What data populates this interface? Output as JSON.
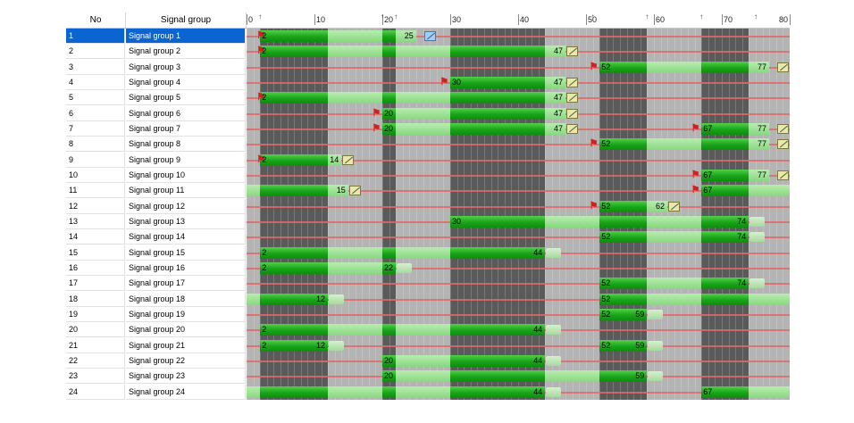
{
  "header": {
    "no_label": "No",
    "signal_group_label": "Signal group"
  },
  "time_axis": {
    "ticks": [
      0,
      10,
      20,
      30,
      40,
      50,
      60,
      70,
      80
    ],
    "markers": [
      2,
      20,
      22,
      51,
      59,
      67,
      75
    ]
  },
  "colors": {
    "green_bar": "#18a418",
    "light_green": "#88d880",
    "background_gray": "#b4b4b4",
    "dark_gray": "#5a5a5a",
    "red_line": "#e06a6a",
    "selection": "#0a64d2"
  },
  "rows": [
    {
      "no": "1",
      "name": "Signal group 1",
      "selected": true,
      "green": [
        [
          2,
          25
        ]
      ],
      "labels": [
        [
          2,
          "2"
        ],
        [
          23,
          "25"
        ]
      ],
      "flags": [
        2
      ],
      "ends": [
        [
          26,
          "blue"
        ]
      ]
    },
    {
      "no": "2",
      "name": "Signal group 2",
      "green": [
        [
          2,
          47
        ]
      ],
      "labels": [
        [
          2,
          "2"
        ],
        [
          45,
          "47"
        ]
      ],
      "flags": [
        2
      ],
      "ends": [
        [
          47,
          "y"
        ]
      ]
    },
    {
      "no": "3",
      "name": "Signal group 3",
      "green": [
        [
          52,
          77
        ]
      ],
      "labels": [
        [
          52,
          "52"
        ],
        [
          75,
          "77"
        ]
      ],
      "flags": [
        51
      ],
      "ends": [
        [
          78,
          "y"
        ]
      ]
    },
    {
      "no": "4",
      "name": "Signal group 4",
      "green": [
        [
          30,
          47
        ]
      ],
      "labels": [
        [
          30,
          "30"
        ],
        [
          45,
          "47"
        ]
      ],
      "flags": [
        29
      ],
      "ends": [
        [
          47,
          "y"
        ]
      ]
    },
    {
      "no": "5",
      "name": "Signal group 5",
      "green": [
        [
          2,
          47
        ]
      ],
      "labels": [
        [
          2,
          "2"
        ],
        [
          45,
          "47"
        ]
      ],
      "flags": [
        2
      ],
      "ends": [
        [
          47,
          "y"
        ]
      ]
    },
    {
      "no": "6",
      "name": "Signal group 6",
      "green": [
        [
          20,
          47
        ]
      ],
      "labels": [
        [
          20,
          "20"
        ],
        [
          45,
          "47"
        ]
      ],
      "flags": [
        19
      ],
      "ends": [
        [
          47,
          "y"
        ]
      ]
    },
    {
      "no": "7",
      "name": "Signal group 7",
      "green": [
        [
          20,
          47
        ],
        [
          67,
          77
        ]
      ],
      "labels": [
        [
          20,
          "20"
        ],
        [
          45,
          "47"
        ],
        [
          67,
          "67"
        ],
        [
          75,
          "77"
        ]
      ],
      "flags": [
        19,
        66
      ],
      "ends": [
        [
          47,
          "y"
        ],
        [
          78,
          "y"
        ]
      ]
    },
    {
      "no": "8",
      "name": "Signal group 8",
      "green": [
        [
          52,
          77
        ]
      ],
      "labels": [
        [
          52,
          "52"
        ],
        [
          75,
          "77"
        ]
      ],
      "flags": [
        51
      ],
      "ends": [
        [
          78,
          "y"
        ]
      ]
    },
    {
      "no": "9",
      "name": "Signal group 9",
      "green": [
        [
          2,
          14
        ]
      ],
      "labels": [
        [
          2,
          "2"
        ],
        [
          12,
          "14"
        ]
      ],
      "flags": [
        2
      ],
      "ends": [
        [
          14,
          "y"
        ]
      ]
    },
    {
      "no": "10",
      "name": "Signal group 10",
      "green": [
        [
          67,
          77
        ]
      ],
      "labels": [
        [
          67,
          "67"
        ],
        [
          75,
          "77"
        ]
      ],
      "flags": [
        66
      ],
      "ends": [
        [
          78,
          "y"
        ]
      ]
    },
    {
      "no": "11",
      "name": "Signal group 11",
      "green": [
        [
          -1,
          15
        ],
        [
          67,
          80
        ]
      ],
      "labels": [
        [
          13,
          "15"
        ],
        [
          67,
          "67"
        ]
      ],
      "flags": [
        66
      ],
      "ends": [
        [
          15,
          "y"
        ]
      ]
    },
    {
      "no": "12",
      "name": "Signal group 12",
      "green": [
        [
          52,
          62
        ]
      ],
      "labels": [
        [
          52,
          "52"
        ],
        [
          60,
          "62"
        ]
      ],
      "flags": [
        51
      ],
      "ends": [
        [
          62,
          "y"
        ]
      ]
    },
    {
      "no": "13",
      "name": "Signal group 13",
      "green": [
        [
          30,
          74
        ]
      ],
      "labels": [
        [
          30,
          "30"
        ],
        [
          72,
          "74"
        ]
      ],
      "flags": [],
      "ends": [],
      "amber": [
        74
      ]
    },
    {
      "no": "14",
      "name": "Signal group 14",
      "green": [
        [
          52,
          74
        ]
      ],
      "labels": [
        [
          52,
          "52"
        ],
        [
          72,
          "74"
        ]
      ],
      "flags": [],
      "ends": [],
      "amber": [
        74
      ]
    },
    {
      "no": "15",
      "name": "Signal group 15",
      "green": [
        [
          2,
          44
        ]
      ],
      "labels": [
        [
          2,
          "2"
        ],
        [
          42,
          "44"
        ]
      ],
      "flags": [],
      "ends": [],
      "amber": [
        44
      ]
    },
    {
      "no": "16",
      "name": "Signal group 16",
      "green": [
        [
          2,
          22
        ]
      ],
      "labels": [
        [
          2,
          "2"
        ],
        [
          20,
          "22"
        ]
      ],
      "flags": [],
      "ends": [],
      "amber": [
        22
      ]
    },
    {
      "no": "17",
      "name": "Signal group 17",
      "green": [
        [
          52,
          74
        ]
      ],
      "labels": [
        [
          52,
          "52"
        ],
        [
          72,
          "74"
        ]
      ],
      "flags": [],
      "ends": [],
      "amber": [
        74
      ]
    },
    {
      "no": "18",
      "name": "Signal group 18",
      "green": [
        [
          -1,
          12
        ],
        [
          52,
          80
        ]
      ],
      "labels": [
        [
          10,
          "12"
        ],
        [
          52,
          "52"
        ]
      ],
      "flags": [],
      "ends": [],
      "amber": [
        12
      ]
    },
    {
      "no": "19",
      "name": "Signal group 19",
      "green": [
        [
          52,
          59
        ]
      ],
      "labels": [
        [
          52,
          "52"
        ],
        [
          57,
          "59"
        ]
      ],
      "flags": [],
      "ends": [],
      "amber": [
        59
      ]
    },
    {
      "no": "20",
      "name": "Signal group 20",
      "green": [
        [
          2,
          44
        ]
      ],
      "labels": [
        [
          2,
          "2"
        ],
        [
          42,
          "44"
        ]
      ],
      "flags": [],
      "ends": [],
      "amber": [
        44
      ]
    },
    {
      "no": "21",
      "name": "Signal group 21",
      "green": [
        [
          2,
          12
        ],
        [
          52,
          59
        ]
      ],
      "labels": [
        [
          2,
          "2"
        ],
        [
          10,
          "12"
        ],
        [
          52,
          "52"
        ],
        [
          57,
          "59"
        ]
      ],
      "flags": [],
      "ends": [],
      "amber": [
        12,
        59
      ]
    },
    {
      "no": "22",
      "name": "Signal group 22",
      "green": [
        [
          20,
          44
        ]
      ],
      "labels": [
        [
          20,
          "20"
        ],
        [
          42,
          "44"
        ]
      ],
      "flags": [],
      "ends": [],
      "amber": [
        44
      ]
    },
    {
      "no": "23",
      "name": "Signal group 23",
      "green": [
        [
          20,
          59
        ]
      ],
      "labels": [
        [
          20,
          "20"
        ],
        [
          57,
          "59"
        ]
      ],
      "flags": [],
      "ends": [],
      "amber": [
        59
      ]
    },
    {
      "no": "24",
      "name": "Signal group 24",
      "green": [
        [
          -1,
          44
        ],
        [
          67,
          80
        ]
      ],
      "labels": [
        [
          42,
          "44"
        ],
        [
          67,
          "67"
        ]
      ],
      "flags": [],
      "ends": [],
      "amber": [
        44
      ]
    }
  ]
}
